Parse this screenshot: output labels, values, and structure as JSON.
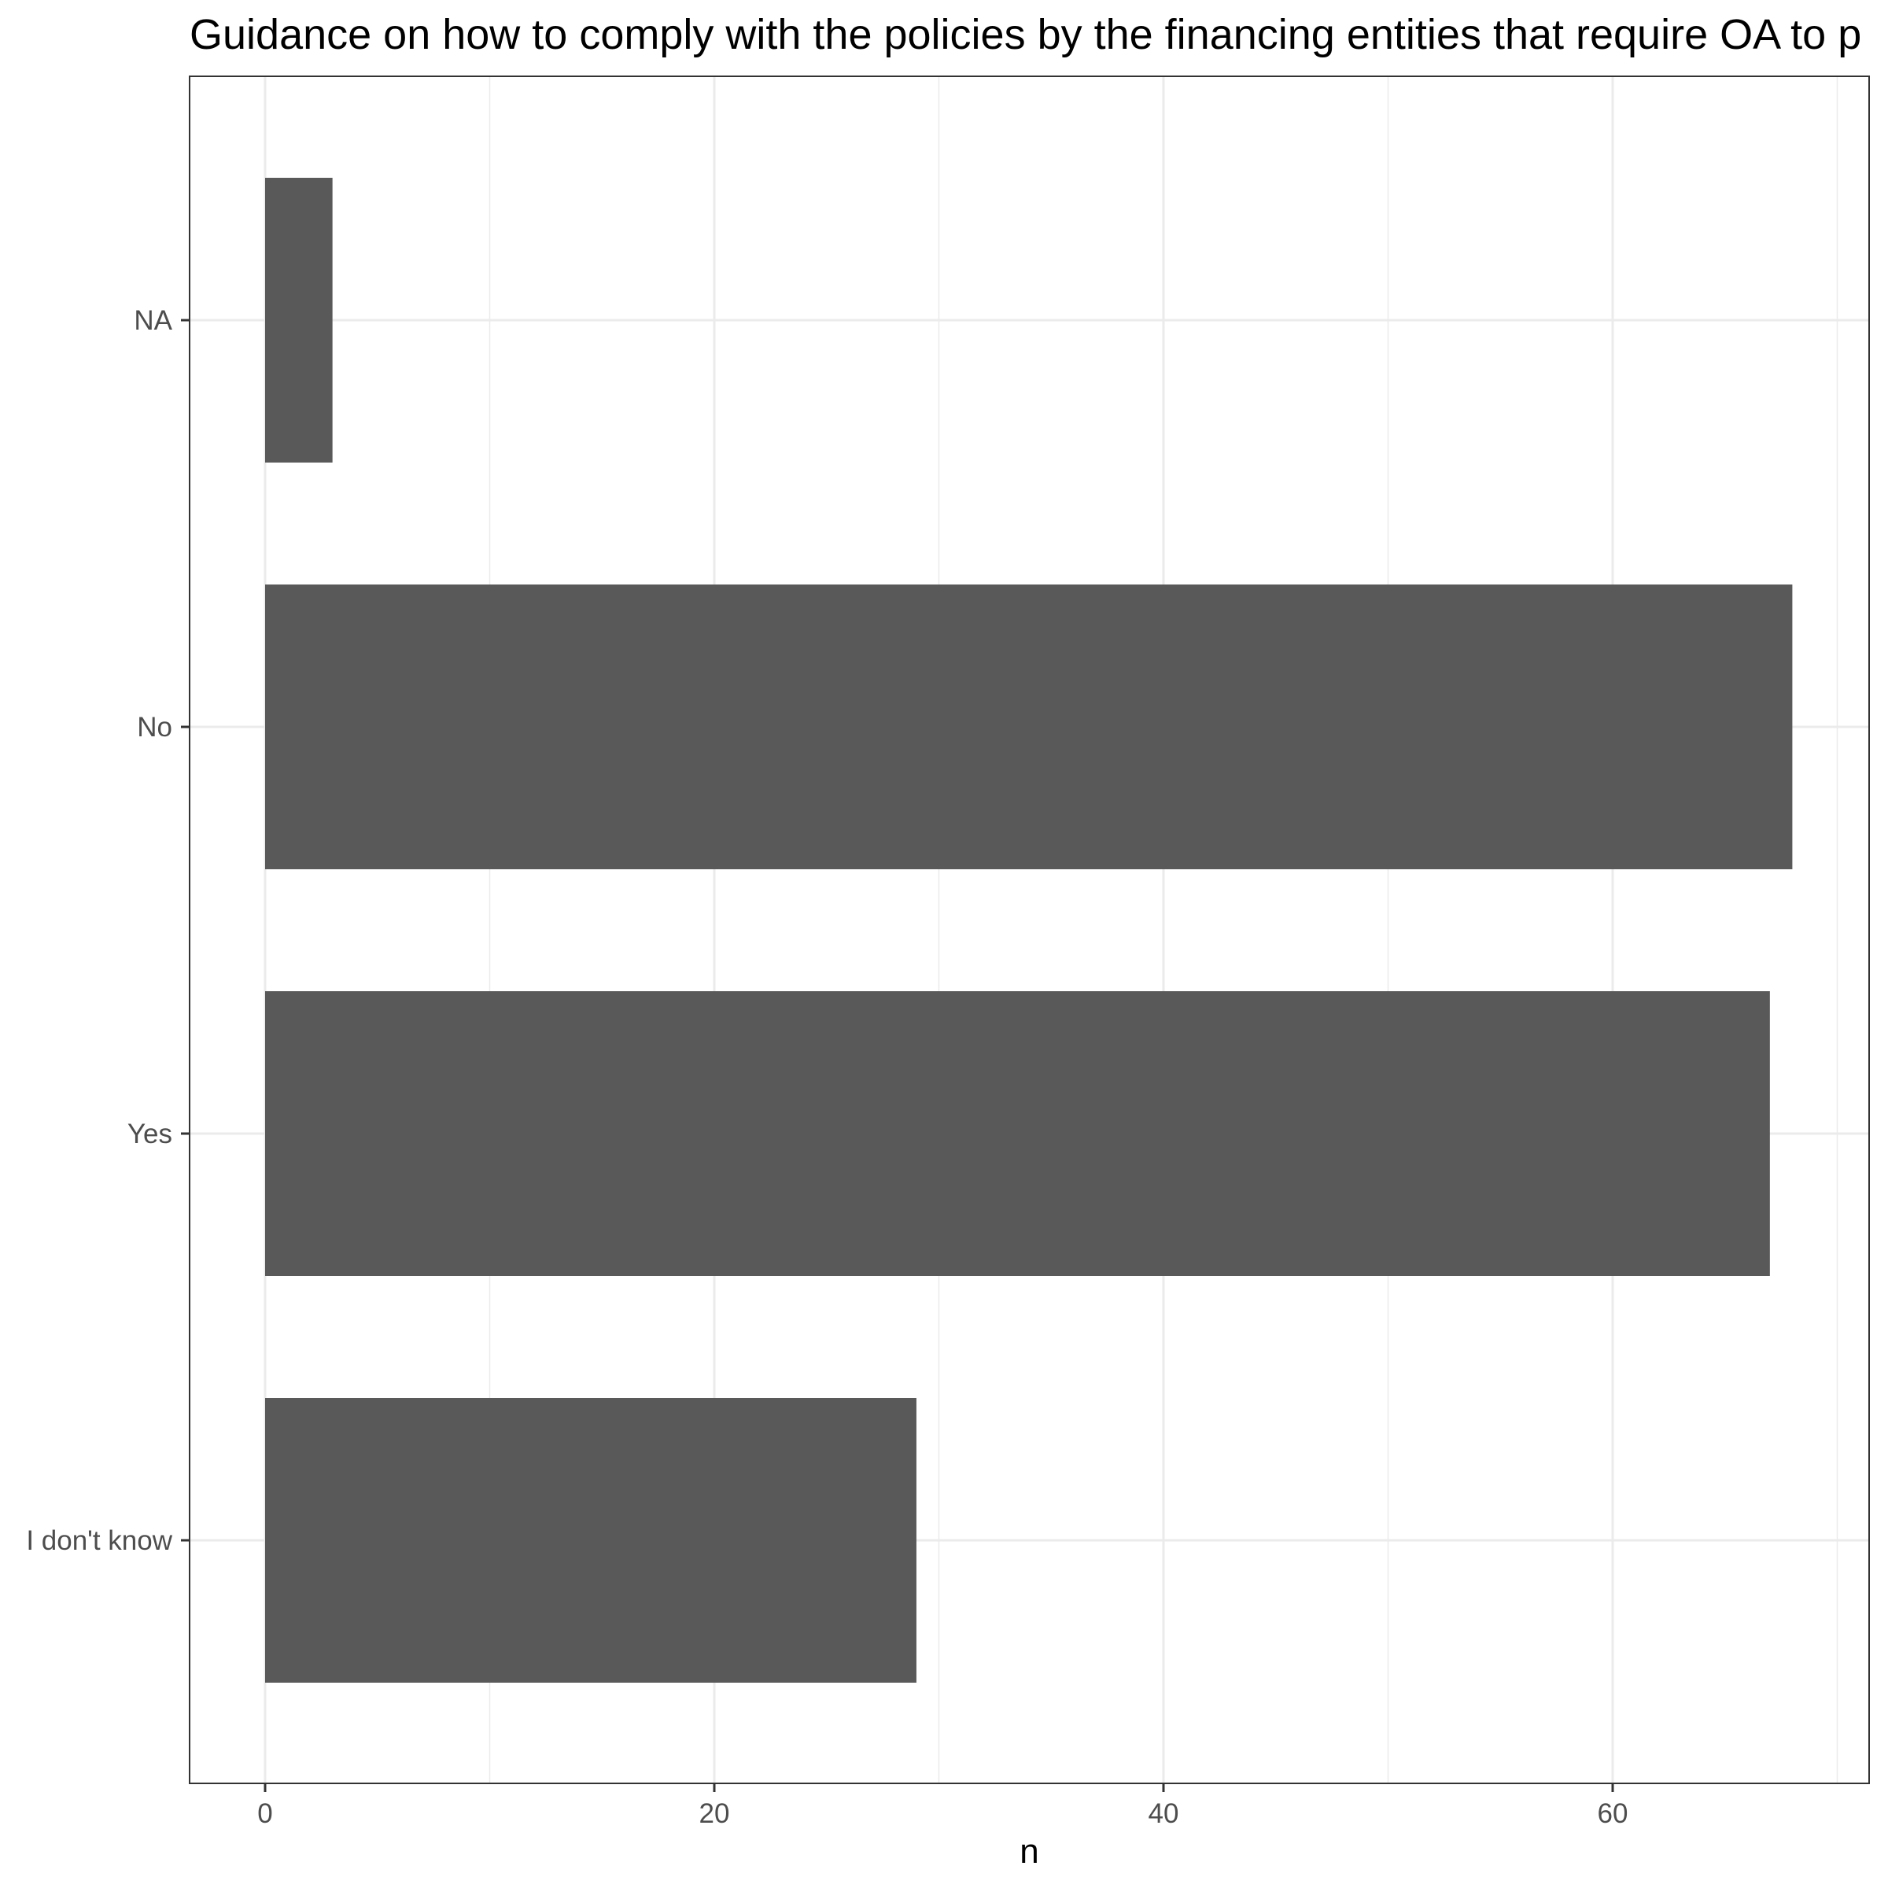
{
  "chart_data": {
    "type": "bar",
    "orientation": "horizontal",
    "title": "Guidance on how to comply with the policies by the financing entities that require OA to p",
    "xlabel": "n",
    "ylabel": "",
    "categories": [
      "I don't know",
      "Yes",
      "No",
      "NA"
    ],
    "values": [
      29,
      67,
      68,
      3
    ],
    "xlim": [
      0,
      71
    ],
    "xticks": [
      0,
      20,
      40,
      60
    ],
    "grid": true,
    "bar_color": "#595959",
    "grid_color": "#ebebeb",
    "panel_border_color": "#333333"
  }
}
